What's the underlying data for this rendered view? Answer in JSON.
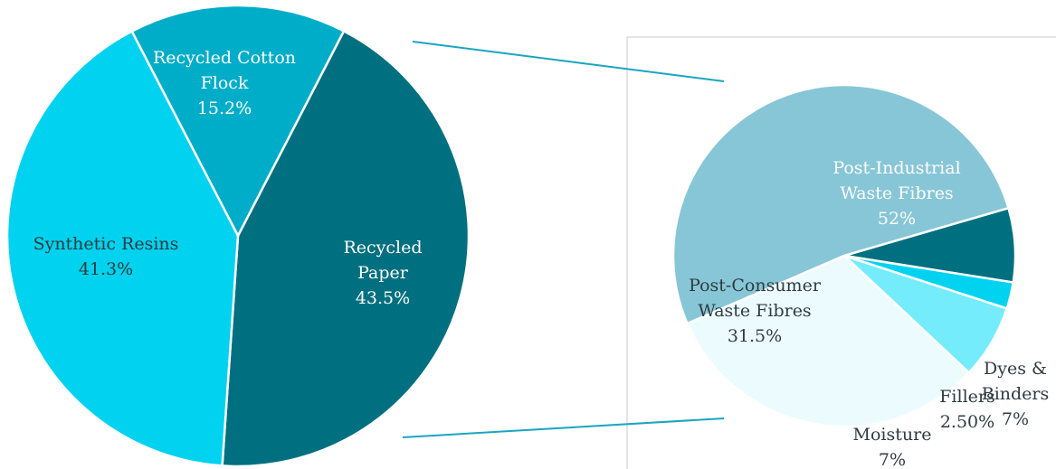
{
  "chart_data": [
    {
      "type": "pie",
      "categories": [
        "Recycled Cotton Flock",
        "Recycled Paper",
        "Synthetic Resins"
      ],
      "values": [
        15.2,
        43.5,
        41.3
      ],
      "value_labels": [
        "15.2%",
        "43.5%",
        "41.3%"
      ],
      "colors": [
        "#00adc8",
        "#006f7f",
        "#00d2ef"
      ],
      "label_lines": [
        [
          "Recycled Cotton",
          "Flock",
          "15.2%"
        ],
        [
          "Recycled",
          "Paper",
          "43.5%"
        ],
        [
          "Synthetic Resins",
          "41.3%"
        ]
      ],
      "title": ""
    },
    {
      "type": "pie",
      "categories": [
        "Post-Industrial Waste Fibres",
        "Dyes & Binders",
        "Fillers",
        "Moisture",
        "Post-Consumer Waste Fibres"
      ],
      "values": [
        52,
        7,
        2.5,
        7,
        31.5
      ],
      "value_labels": [
        "52%",
        "7%",
        "2.50%",
        "7%",
        "31.5%"
      ],
      "colors": [
        "#87c6d6",
        "#006f7f",
        "#00d2ef",
        "#74ecfc",
        "#ecfcfe"
      ],
      "label_lines": [
        [
          "Post-Industrial",
          "Waste Fibres",
          "52%"
        ],
        [
          "Dyes &",
          "Binders",
          "7%"
        ],
        [
          "Fillers",
          "2.50%"
        ],
        [
          "Moisture",
          "7%"
        ],
        [
          "Post-Consumer",
          "Waste Fibres",
          "31.5%"
        ]
      ],
      "title": ""
    }
  ]
}
